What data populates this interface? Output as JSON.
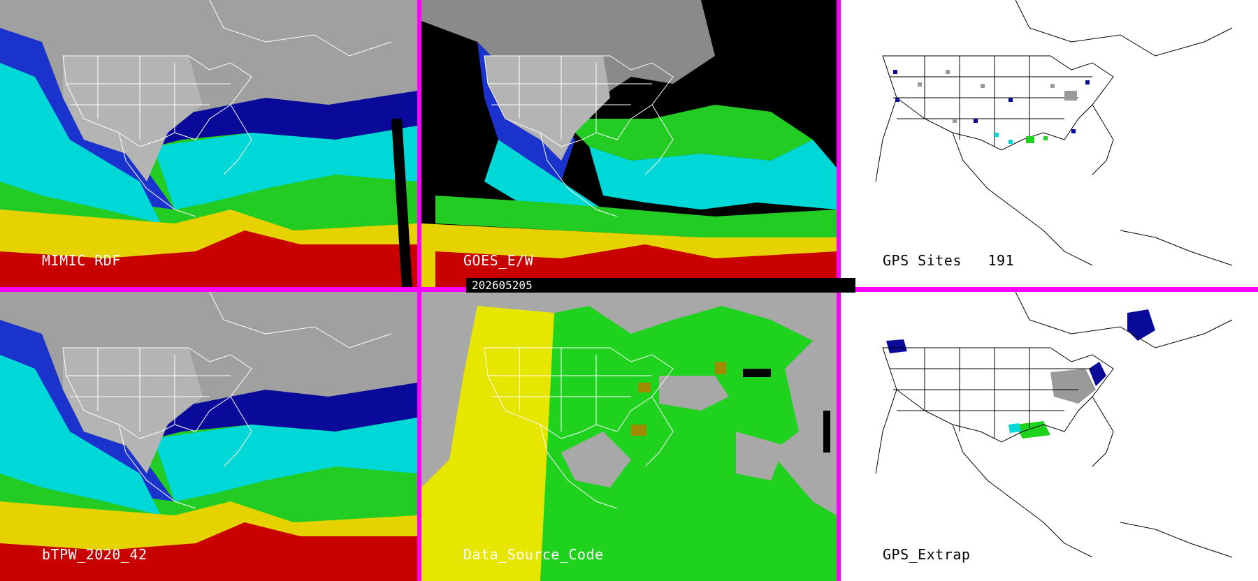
{
  "panels": [
    {
      "id": "mimic",
      "label": "MIMIC RDF"
    },
    {
      "id": "goes",
      "label": "GOES_E/W"
    },
    {
      "id": "gps",
      "label": "GPS Sites   191"
    },
    {
      "id": "btpw",
      "label": "bTPW_2020_42"
    },
    {
      "id": "dsc",
      "label": "Data_Source_Code"
    },
    {
      "id": "gpsx",
      "label": "GPS_Extrap"
    }
  ],
  "timestamp": "202605205",
  "colors": {
    "frame": "#ff00ff",
    "gray_dry": "#9a9a9a",
    "navy": "#0a0a9a",
    "blue": "#1e3cdc",
    "cyan": "#00dcdc",
    "green": "#1ed21e",
    "yellow": "#e6e600",
    "red": "#c80000"
  }
}
